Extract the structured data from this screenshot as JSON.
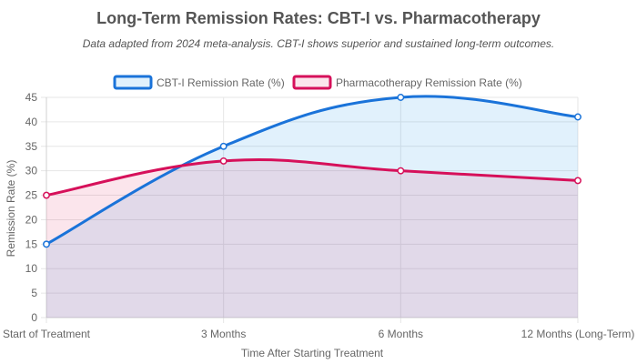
{
  "chart_data": {
    "type": "line",
    "title": "Long-Term Remission Rates: CBT-I vs. Pharmacotherapy",
    "subtitle": "Data adapted from 2024 meta-analysis. CBT-I shows superior and sustained long-term outcomes.",
    "xlabel": "Time After Starting Treatment",
    "ylabel": "Remission Rate (%)",
    "ylim": [
      0,
      45
    ],
    "yticks": [
      0,
      5,
      10,
      15,
      20,
      25,
      30,
      35,
      40,
      45
    ],
    "categories": [
      "Start of Treatment",
      "3 Months",
      "6 Months",
      "12 Months (Long-Term)"
    ],
    "legend_position": "top-center",
    "grid": true,
    "series": [
      {
        "name": "CBT-I Remission Rate (%)",
        "values": [
          15,
          35,
          45,
          41
        ],
        "color": "#1a73d9",
        "fill": "rgba(54, 162, 235, 0.15)",
        "key": "cbti"
      },
      {
        "name": "Pharmacotherapy Remission Rate (%)",
        "values": [
          25,
          32,
          30,
          28
        ],
        "color": "#d6105a",
        "fill": "rgba(230, 80, 130, 0.15)",
        "key": "pharma"
      }
    ]
  }
}
